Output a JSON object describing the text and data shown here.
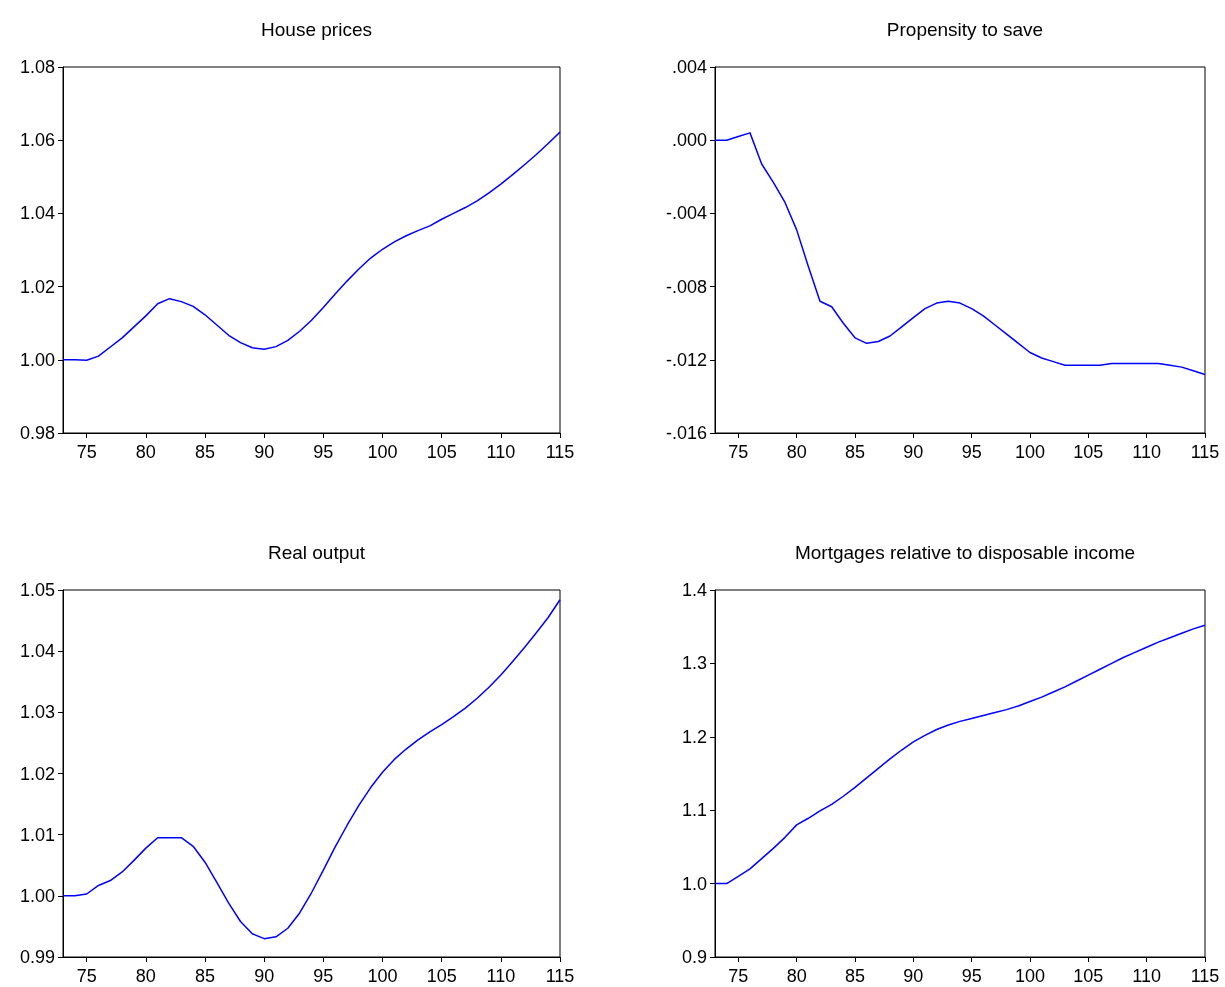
{
  "chart_data": [
    {
      "type": "line",
      "title": "House prices",
      "color": "#0000ff",
      "x": [
        73,
        74,
        75,
        76,
        77,
        78,
        79,
        80,
        81,
        82,
        83,
        84,
        85,
        86,
        87,
        88,
        89,
        90,
        91,
        92,
        93,
        94,
        95,
        96,
        97,
        98,
        99,
        100,
        101,
        102,
        103,
        104,
        105,
        106,
        107,
        108,
        109,
        110,
        111,
        112,
        113,
        114,
        115
      ],
      "values": [
        1.0,
        1.0,
        0.9999,
        1.001,
        1.0035,
        1.006,
        1.009,
        1.012,
        1.0153,
        1.0167,
        1.0159,
        1.0146,
        1.0123,
        1.0095,
        1.0067,
        1.0047,
        1.0033,
        1.0029,
        1.0036,
        1.0053,
        1.0078,
        1.0108,
        1.0143,
        1.018,
        1.0215,
        1.0248,
        1.0278,
        1.0302,
        1.0322,
        1.0339,
        1.0353,
        1.0366,
        1.0384,
        1.04,
        1.0416,
        1.0434,
        1.0456,
        1.048,
        1.0506,
        1.0533,
        1.0561,
        1.0591,
        1.0622
      ],
      "xlim": [
        73,
        115
      ],
      "xticks": [
        75,
        80,
        85,
        90,
        95,
        100,
        105,
        110,
        115
      ],
      "ylim": [
        0.98,
        1.08
      ],
      "yticks": [
        {
          "value": 0.98,
          "label": "0.98"
        },
        {
          "value": 1.0,
          "label": "1.00"
        },
        {
          "value": 1.02,
          "label": "1.02"
        },
        {
          "value": 1.04,
          "label": "1.04"
        },
        {
          "value": 1.06,
          "label": "1.06"
        },
        {
          "value": 1.08,
          "label": "1.08"
        }
      ]
    },
    {
      "type": "line",
      "title": "Propensity to save",
      "color": "#0000ff",
      "x": [
        73,
        74,
        75,
        76,
        77,
        78,
        79,
        80,
        81,
        82,
        83,
        84,
        85,
        86,
        87,
        88,
        89,
        90,
        91,
        92,
        93,
        94,
        95,
        96,
        97,
        98,
        99,
        100,
        101,
        102,
        103,
        104,
        105,
        106,
        107,
        108,
        109,
        110,
        111,
        112,
        113,
        114,
        115
      ],
      "values": [
        0,
        0,
        0.0002,
        0.0004,
        -0.0013,
        -0.0023,
        -0.0034,
        -0.0049,
        -0.0069,
        -0.0088,
        -0.0091,
        -0.01,
        -0.0108,
        -0.0111,
        -0.011,
        -0.0107,
        -0.0102,
        -0.0097,
        -0.0092,
        -0.0089,
        -0.0088,
        -0.0089,
        -0.0092,
        -0.0096,
        -0.0101,
        -0.0106,
        -0.0111,
        -0.0116,
        -0.0119,
        -0.0121,
        -0.0123,
        -0.0123,
        -0.0123,
        -0.0123,
        -0.0122,
        -0.0122,
        -0.0122,
        -0.0122,
        -0.0122,
        -0.0123,
        -0.0124,
        -0.0126,
        -0.0128
      ],
      "xlim": [
        73,
        115
      ],
      "xticks": [
        75,
        80,
        85,
        90,
        95,
        100,
        105,
        110,
        115
      ],
      "ylim": [
        -0.016,
        0.004
      ],
      "yticks": [
        {
          "value": -0.016,
          "label": "-.016"
        },
        {
          "value": -0.012,
          "label": "-.012"
        },
        {
          "value": -0.008,
          "label": "-.008"
        },
        {
          "value": -0.004,
          "label": "-.004"
        },
        {
          "value": 0,
          "label": ".000"
        },
        {
          "value": 0.004,
          "label": ".004"
        }
      ]
    },
    {
      "type": "line",
      "title": "Real output",
      "color": "#0000ff",
      "x": [
        73,
        74,
        75,
        76,
        77,
        78,
        79,
        80,
        81,
        82,
        83,
        84,
        85,
        86,
        87,
        88,
        89,
        90,
        91,
        92,
        93,
        94,
        95,
        96,
        97,
        98,
        99,
        100,
        101,
        102,
        103,
        104,
        105,
        106,
        107,
        108,
        109,
        110,
        111,
        112,
        113,
        114,
        115
      ],
      "values": [
        1.0,
        1.0,
        1.0003,
        1.0017,
        1.0025,
        1.0039,
        1.0058,
        1.0078,
        1.0095,
        1.0095,
        1.0095,
        1.0081,
        1.0055,
        1.0022,
        0.9988,
        0.9958,
        0.9938,
        0.993,
        0.9933,
        0.9947,
        0.9972,
        1.0005,
        1.0042,
        1.008,
        1.0115,
        1.0148,
        1.0177,
        1.0202,
        1.0223,
        1.024,
        1.0255,
        1.0268,
        1.028,
        1.0293,
        1.0307,
        1.0323,
        1.0341,
        1.0361,
        1.0383,
        1.0406,
        1.043,
        1.0455,
        1.0484
      ],
      "xlim": [
        73,
        115
      ],
      "xticks": [
        75,
        80,
        85,
        90,
        95,
        100,
        105,
        110,
        115
      ],
      "ylim": [
        0.99,
        1.05
      ],
      "yticks": [
        {
          "value": 0.99,
          "label": "0.99"
        },
        {
          "value": 1.0,
          "label": "1.00"
        },
        {
          "value": 1.01,
          "label": "1.01"
        },
        {
          "value": 1.02,
          "label": "1.02"
        },
        {
          "value": 1.03,
          "label": "1.03"
        },
        {
          "value": 1.04,
          "label": "1.04"
        },
        {
          "value": 1.05,
          "label": "1.05"
        }
      ]
    },
    {
      "type": "line",
      "title": "Mortgages relative to disposable income",
      "color": "#0000ff",
      "x": [
        73,
        74,
        75,
        76,
        77,
        78,
        79,
        80,
        81,
        82,
        83,
        84,
        85,
        86,
        87,
        88,
        89,
        90,
        91,
        92,
        93,
        94,
        95,
        96,
        97,
        98,
        99,
        100,
        101,
        102,
        103,
        104,
        105,
        106,
        107,
        108,
        109,
        110,
        111,
        112,
        113,
        114,
        115
      ],
      "values": [
        1.0,
        1.0,
        1.01,
        1.02,
        1.034,
        1.048,
        1.063,
        1.08,
        1.089,
        1.099,
        1.108,
        1.119,
        1.131,
        1.144,
        1.157,
        1.17,
        1.182,
        1.193,
        1.202,
        1.21,
        1.216,
        1.221,
        1.225,
        1.229,
        1.233,
        1.237,
        1.242,
        1.248,
        1.254,
        1.261,
        1.268,
        1.276,
        1.284,
        1.292,
        1.3,
        1.308,
        1.315,
        1.322,
        1.329,
        1.335,
        1.341,
        1.347,
        1.352
      ],
      "xlim": [
        73,
        115
      ],
      "xticks": [
        75,
        80,
        85,
        90,
        95,
        100,
        105,
        110,
        115
      ],
      "ylim": [
        0.9,
        1.4
      ],
      "yticks": [
        {
          "value": 0.9,
          "label": "0.9"
        },
        {
          "value": 1.0,
          "label": "1.0"
        },
        {
          "value": 1.1,
          "label": "1.1"
        },
        {
          "value": 1.2,
          "label": "1.2"
        },
        {
          "value": 1.3,
          "label": "1.3"
        },
        {
          "value": 1.4,
          "label": "1.4"
        }
      ]
    }
  ]
}
